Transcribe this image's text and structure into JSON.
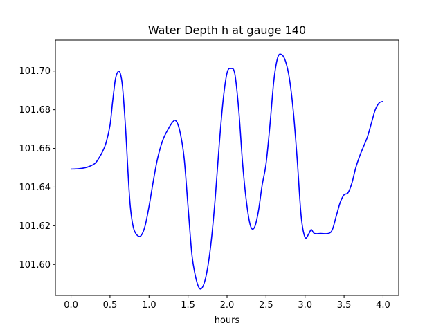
{
  "chart_data": {
    "type": "line",
    "title": "Water Depth h at gauge 140",
    "xlabel": "hours",
    "ylabel": "",
    "xlim": [
      -0.2,
      4.2
    ],
    "ylim": [
      101.584,
      101.716
    ],
    "grid": false,
    "legend": "none",
    "x_ticks": [
      0.0,
      0.5,
      1.0,
      1.5,
      2.0,
      2.5,
      3.0,
      3.5,
      4.0
    ],
    "x_tick_labels": [
      "0.0",
      "0.5",
      "1.0",
      "1.5",
      "2.0",
      "2.5",
      "3.0",
      "3.5",
      "4.0"
    ],
    "y_ticks": [
      101.6,
      101.62,
      101.64,
      101.66,
      101.68,
      101.7
    ],
    "y_tick_labels": [
      "101.60",
      "101.62",
      "101.64",
      "101.66",
      "101.68",
      "101.70"
    ],
    "line_color": "#0000ff",
    "series": [
      {
        "x": [
          0.0,
          0.1,
          0.2,
          0.3,
          0.35,
          0.4,
          0.45,
          0.5,
          0.53,
          0.55,
          0.57,
          0.6,
          0.63,
          0.66,
          0.7,
          0.73,
          0.76,
          0.8,
          0.85,
          0.9,
          0.95,
          1.0,
          1.05,
          1.1,
          1.15,
          1.2,
          1.3,
          1.35,
          1.4,
          1.45,
          1.5,
          1.55,
          1.6,
          1.65,
          1.7,
          1.75,
          1.8,
          1.85,
          1.9,
          1.95,
          2.0,
          2.05,
          2.1,
          2.15,
          2.2,
          2.25,
          2.3,
          2.35,
          2.4,
          2.45,
          2.5,
          2.55,
          2.6,
          2.65,
          2.7,
          2.75,
          2.8,
          2.85,
          2.9,
          2.95,
          3.0,
          3.05,
          3.08,
          3.12,
          3.2,
          3.3,
          3.35,
          3.4,
          3.45,
          3.5,
          3.55,
          3.6,
          3.65,
          3.7,
          3.75,
          3.8,
          3.85,
          3.9,
          3.95,
          4.0
        ],
        "y": [
          101.6493,
          101.6495,
          101.6502,
          101.652,
          101.6545,
          101.658,
          101.663,
          101.672,
          101.683,
          101.69,
          101.696,
          101.6995,
          101.699,
          101.692,
          101.67,
          101.648,
          101.63,
          101.619,
          101.615,
          101.615,
          101.62,
          101.63,
          101.642,
          101.653,
          101.661,
          101.6665,
          101.6735,
          101.674,
          101.668,
          101.655,
          101.63,
          101.605,
          101.593,
          101.5875,
          101.5895,
          101.598,
          101.613,
          101.635,
          101.662,
          101.685,
          101.699,
          101.7013,
          101.6985,
          101.68,
          101.652,
          101.632,
          101.62,
          101.619,
          101.627,
          101.641,
          101.652,
          101.672,
          101.695,
          101.707,
          101.7085,
          101.705,
          101.696,
          101.679,
          101.654,
          101.625,
          101.614,
          101.616,
          101.618,
          101.616,
          101.616,
          101.616,
          101.618,
          101.625,
          101.632,
          101.636,
          101.637,
          101.642,
          101.65,
          101.656,
          101.661,
          101.666,
          101.673,
          101.68,
          101.6835,
          101.6843
        ]
      }
    ]
  }
}
